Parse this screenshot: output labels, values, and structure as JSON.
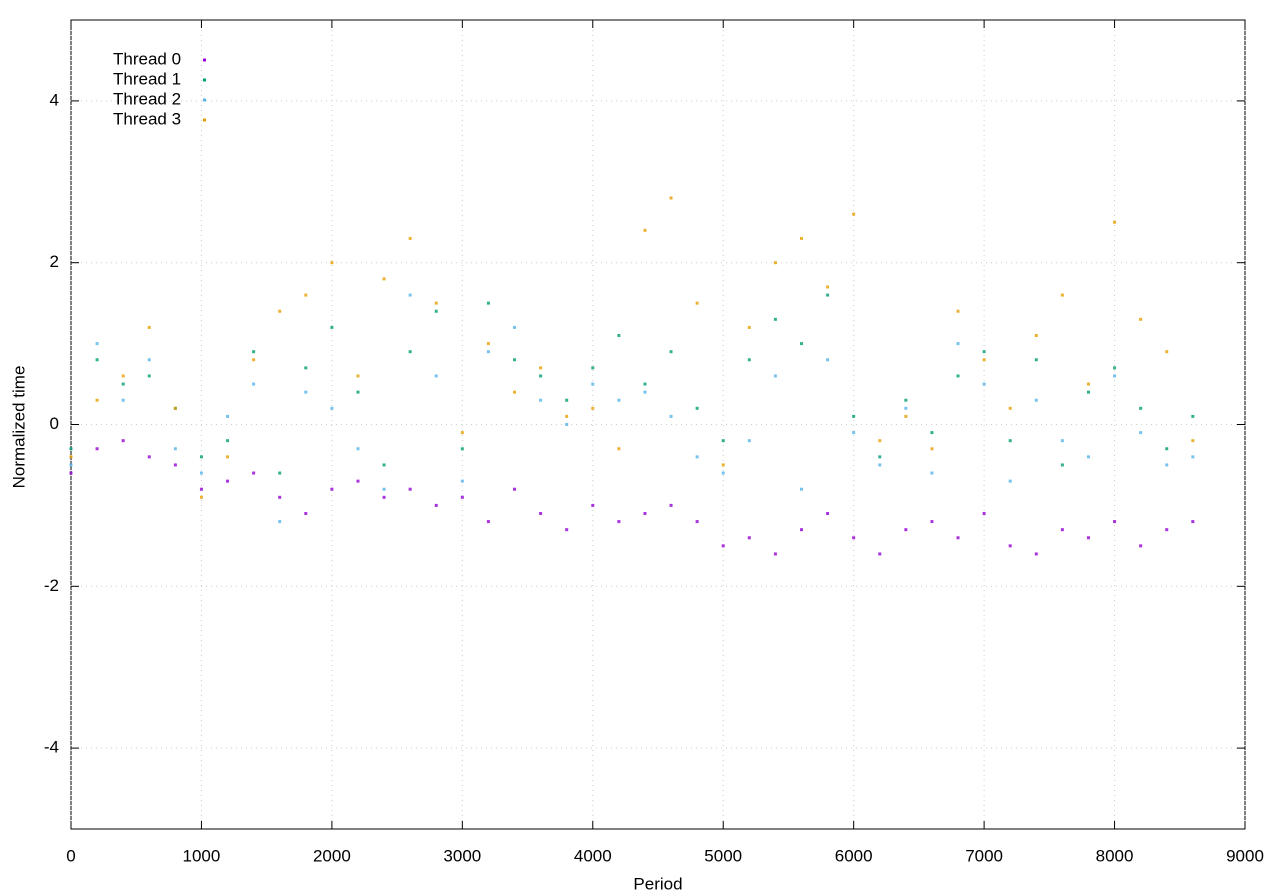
{
  "chart_data": {
    "type": "scatter",
    "xlabel": "Period",
    "ylabel": "Normalized time",
    "xlim": [
      0,
      9000
    ],
    "ylim": [
      -5,
      5
    ],
    "xticks": [
      0,
      1000,
      2000,
      3000,
      4000,
      5000,
      6000,
      7000,
      8000,
      9000
    ],
    "yticks": [
      -4,
      -2,
      0,
      2,
      4
    ],
    "grid": true,
    "legend": "top left",
    "x": [
      0,
      200,
      400,
      600,
      800,
      1000,
      1200,
      1400,
      1600,
      1800,
      2000,
      2200,
      2400,
      2600,
      2800,
      3000,
      3200,
      3400,
      3600,
      3800,
      4000,
      4200,
      4400,
      4600,
      4800,
      5000,
      5200,
      5400,
      5600,
      5800,
      6000,
      6200,
      6400,
      6600,
      6800,
      7000,
      7200,
      7400,
      7600,
      7800,
      8000,
      8200,
      8400,
      8600
    ],
    "series": [
      {
        "name": "Thread 0",
        "color": "#9400d3",
        "values": [
          -0.6,
          -0.3,
          -0.2,
          -0.4,
          -0.5,
          -0.8,
          -0.7,
          -0.6,
          -0.9,
          -1.1,
          -0.8,
          -0.7,
          -0.9,
          -0.8,
          -1.0,
          -0.9,
          -1.2,
          -0.8,
          -1.1,
          -1.3,
          -1.0,
          -1.2,
          -1.1,
          -1.0,
          -1.2,
          -1.5,
          -1.4,
          -1.6,
          -1.3,
          -1.1,
          -1.4,
          -1.6,
          -1.3,
          -1.2,
          -1.4,
          -1.1,
          -1.5,
          -1.6,
          -1.3,
          -1.4,
          -1.2,
          -1.5,
          -1.3,
          -1.2
        ]
      },
      {
        "name": "Thread 1",
        "color": "#009e73",
        "values": [
          -0.3,
          0.8,
          0.5,
          0.6,
          0.2,
          -0.4,
          -0.2,
          0.9,
          -0.6,
          0.7,
          1.2,
          0.4,
          -0.5,
          0.9,
          1.4,
          -0.3,
          1.5,
          0.8,
          0.6,
          0.3,
          0.7,
          1.1,
          0.5,
          0.9,
          0.2,
          -0.2,
          0.8,
          1.3,
          1.0,
          1.6,
          0.1,
          -0.4,
          0.3,
          -0.1,
          0.6,
          0.9,
          -0.2,
          0.8,
          -0.5,
          0.4,
          0.7,
          0.2,
          -0.3,
          0.1
        ]
      },
      {
        "name": "Thread 2",
        "color": "#56b4e9",
        "values": [
          -0.5,
          1.0,
          0.3,
          0.8,
          -0.3,
          -0.6,
          0.1,
          0.5,
          -1.2,
          0.4,
          0.2,
          -0.3,
          -0.8,
          1.6,
          0.6,
          -0.7,
          0.9,
          1.2,
          0.3,
          0.0,
          0.5,
          0.3,
          0.4,
          0.1,
          -0.4,
          -0.6,
          -0.2,
          0.6,
          -0.8,
          0.8,
          -0.1,
          -0.5,
          0.2,
          -0.6,
          1.0,
          0.5,
          -0.7,
          0.3,
          -0.2,
          -0.4,
          0.6,
          -0.1,
          -0.5,
          -0.4
        ]
      },
      {
        "name": "Thread 3",
        "color": "#e69f00",
        "values": [
          -0.4,
          0.3,
          0.6,
          1.2,
          0.2,
          -0.9,
          -0.4,
          0.8,
          1.4,
          1.6,
          2.0,
          0.6,
          1.8,
          2.3,
          1.5,
          -0.1,
          1.0,
          0.4,
          0.7,
          0.1,
          0.2,
          -0.3,
          2.4,
          2.8,
          1.5,
          -0.5,
          1.2,
          2.0,
          2.3,
          1.7,
          2.6,
          -0.2,
          0.1,
          -0.3,
          1.4,
          0.8,
          0.2,
          1.1,
          1.6,
          0.5,
          2.5,
          1.3,
          0.9,
          -0.2
        ]
      }
    ]
  }
}
